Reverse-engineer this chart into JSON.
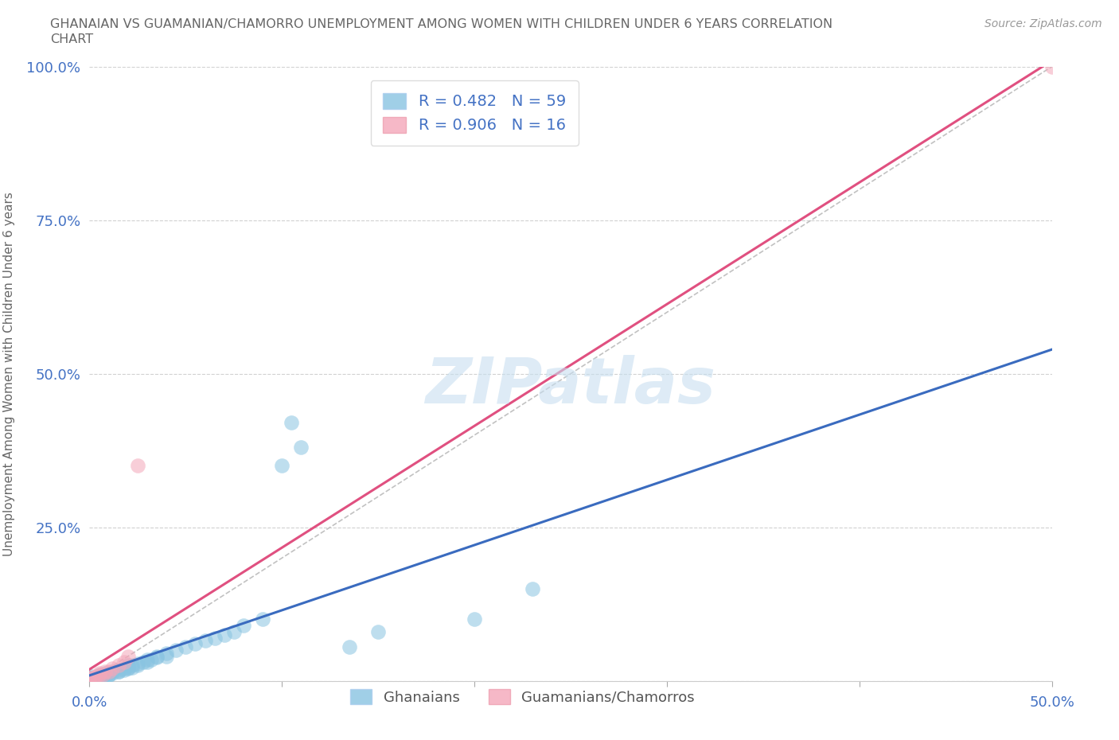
{
  "title_line1": "GHANAIAN VS GUAMANIAN/CHAMORRO UNEMPLOYMENT AMONG WOMEN WITH CHILDREN UNDER 6 YEARS CORRELATION",
  "title_line2": "CHART",
  "source": "Source: ZipAtlas.com",
  "ylabel": "Unemployment Among Women with Children Under 6 years",
  "watermark": "ZIPatlas",
  "xlim": [
    0.0,
    0.5
  ],
  "ylim": [
    0.0,
    1.0
  ],
  "legend_r1": "R = 0.482   N = 59",
  "legend_r2": "R = 0.906   N = 16",
  "legend_label1": "Ghanaians",
  "legend_label2": "Guamanians/Chamorros",
  "color_blue": "#89c4e1",
  "color_pink": "#f4a7b9",
  "color_line_blue": "#3a6bbf",
  "color_line_pink": "#e05080",
  "color_ref_line": "#bbbbbb",
  "tick_color": "#4472c4",
  "title_color": "#666666",
  "source_color": "#999999",
  "background_color": "#ffffff",
  "ghanaian_x": [
    0.0,
    0.0,
    0.0,
    0.0,
    0.0,
    0.0,
    0.0,
    0.0,
    0.0,
    0.0,
    0.005,
    0.005,
    0.005,
    0.005,
    0.005,
    0.007,
    0.008,
    0.008,
    0.01,
    0.01,
    0.01,
    0.012,
    0.012,
    0.015,
    0.015,
    0.015,
    0.018,
    0.018,
    0.02,
    0.02,
    0.02,
    0.022,
    0.022,
    0.025,
    0.025,
    0.028,
    0.03,
    0.03,
    0.032,
    0.035,
    0.035,
    0.04,
    0.04,
    0.045,
    0.05,
    0.055,
    0.06,
    0.065,
    0.07,
    0.075,
    0.08,
    0.09,
    0.1,
    0.11,
    0.105,
    0.135,
    0.15,
    0.2,
    0.23
  ],
  "ghanaian_y": [
    0.0,
    0.0,
    0.0,
    0.0,
    0.003,
    0.005,
    0.005,
    0.005,
    0.005,
    0.008,
    0.005,
    0.005,
    0.008,
    0.008,
    0.01,
    0.008,
    0.01,
    0.012,
    0.01,
    0.01,
    0.012,
    0.012,
    0.015,
    0.015,
    0.015,
    0.018,
    0.018,
    0.02,
    0.02,
    0.022,
    0.025,
    0.022,
    0.025,
    0.025,
    0.028,
    0.03,
    0.03,
    0.035,
    0.035,
    0.038,
    0.04,
    0.04,
    0.045,
    0.05,
    0.055,
    0.06,
    0.065,
    0.07,
    0.075,
    0.08,
    0.09,
    0.1,
    0.35,
    0.38,
    0.42,
    0.055,
    0.08,
    0.1,
    0.15
  ],
  "guamanian_x": [
    0.0,
    0.0,
    0.0,
    0.002,
    0.003,
    0.005,
    0.005,
    0.007,
    0.008,
    0.01,
    0.012,
    0.015,
    0.018,
    0.02,
    0.025,
    0.5
  ],
  "guamanian_y": [
    0.0,
    0.003,
    0.005,
    0.005,
    0.007,
    0.01,
    0.012,
    0.01,
    0.015,
    0.015,
    0.02,
    0.025,
    0.03,
    0.04,
    0.35,
    1.0
  ]
}
